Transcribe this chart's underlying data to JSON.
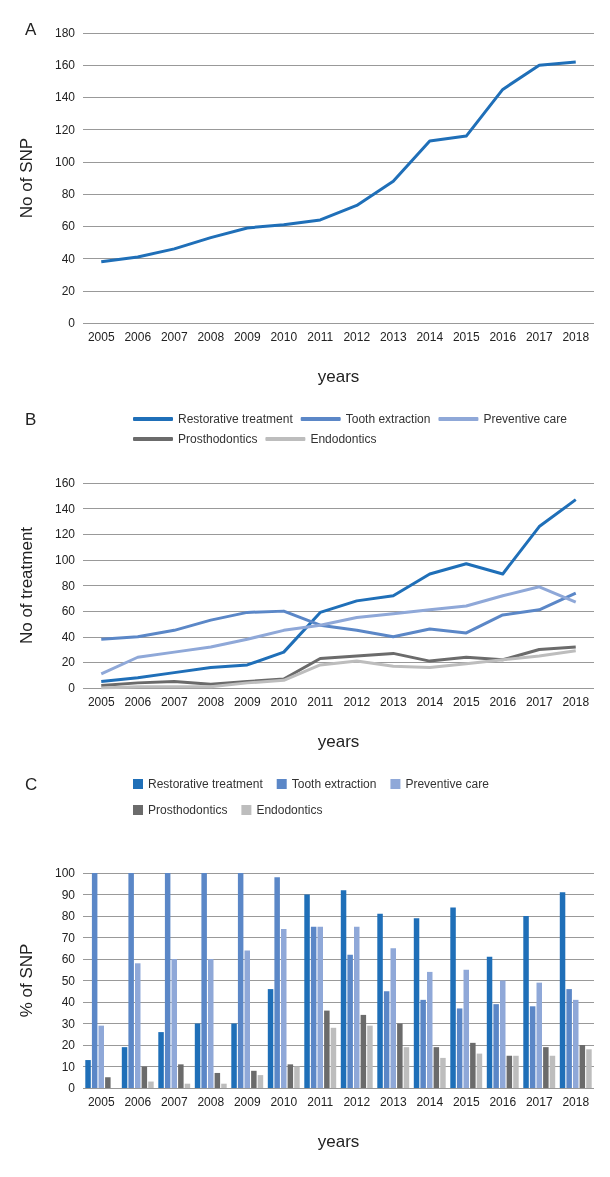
{
  "chart_data": [
    {
      "type": "line",
      "title": "A",
      "xlabel": "years",
      "ylabel": "No of SNP",
      "categories": [
        "2005",
        "2006",
        "2007",
        "2008",
        "2009",
        "2010",
        "2011",
        "2012",
        "2013",
        "2014",
        "2015",
        "2016",
        "2017",
        "2018"
      ],
      "series": [
        {
          "color": "#1f6fb8",
          "values": [
            38,
            41,
            46,
            53,
            59,
            61,
            64,
            73,
            88,
            113,
            116,
            145,
            160,
            162
          ]
        }
      ],
      "ylim": [
        0,
        180
      ],
      "yticks": [
        0,
        20,
        40,
        60,
        80,
        100,
        120,
        140,
        160,
        180
      ],
      "grid": "y",
      "legend": false,
      "marker": "none"
    },
    {
      "type": "line",
      "title": "B",
      "xlabel": "years",
      "ylabel": "No of treatment",
      "categories": [
        "2005",
        "2006",
        "2007",
        "2008",
        "2009",
        "2010",
        "2011",
        "2012",
        "2013",
        "2014",
        "2015",
        "2016",
        "2017",
        "2018"
      ],
      "series": [
        {
          "name": "Restorative treatment",
          "color": "#1f6fb8",
          "values": [
            5,
            8,
            12,
            16,
            18,
            28,
            59,
            68,
            72,
            89,
            97,
            89,
            126,
            147
          ]
        },
        {
          "name": "Tooth extraction",
          "color": "#5b87c7",
          "values": [
            38,
            40,
            45,
            53,
            59,
            60,
            49,
            45,
            40,
            46,
            43,
            57,
            61,
            74
          ]
        },
        {
          "name": "Preventive care",
          "color": "#8fa8d8",
          "values": [
            11,
            24,
            28,
            32,
            38,
            45,
            49,
            55,
            58,
            61,
            64,
            72,
            79,
            67
          ]
        },
        {
          "name": "Prosthodontics",
          "color": "#6b6b6b",
          "values": [
            2,
            4,
            5,
            3,
            5,
            7,
            23,
            25,
            27,
            21,
            24,
            22,
            30,
            32
          ]
        },
        {
          "name": "Endodontics",
          "color": "#bdbdbd",
          "values": [
            0,
            1,
            1,
            1,
            4,
            6,
            18,
            21,
            17,
            16,
            19,
            22,
            25,
            29
          ]
        }
      ],
      "ylim": [
        0,
        160
      ],
      "yticks": [
        0,
        20,
        40,
        60,
        80,
        100,
        120,
        140,
        160
      ],
      "grid": "y",
      "legend": "top",
      "marker": "none"
    },
    {
      "type": "bar",
      "title": "C",
      "xlabel": "years",
      "ylabel": "% of SNP",
      "categories": [
        "2005",
        "2006",
        "2007",
        "2008",
        "2009",
        "2010",
        "2011",
        "2012",
        "2013",
        "2014",
        "2015",
        "2016",
        "2017",
        "2018"
      ],
      "series": [
        {
          "name": "Restorative treatment",
          "color": "#1f6fb8",
          "values": [
            13,
            19,
            26,
            30,
            30,
            46,
            90,
            92,
            81,
            79,
            84,
            61,
            80,
            91
          ]
        },
        {
          "name": "Tooth extraction",
          "color": "#5b87c7",
          "values": [
            100,
            100,
            100,
            100,
            100,
            98,
            75,
            62,
            45,
            41,
            37,
            39,
            38,
            46
          ]
        },
        {
          "name": "Preventive care",
          "color": "#8fa8d8",
          "values": [
            29,
            58,
            60,
            60,
            64,
            74,
            75,
            75,
            65,
            54,
            55,
            50,
            49,
            41
          ]
        },
        {
          "name": "Prosthodontics",
          "color": "#6b6b6b",
          "values": [
            5,
            10,
            11,
            7,
            8,
            11,
            36,
            34,
            30,
            19,
            21,
            15,
            19,
            20
          ]
        },
        {
          "name": "Endodontics",
          "color": "#bdbdbd",
          "values": [
            0,
            3,
            2,
            2,
            6,
            10,
            28,
            29,
            19,
            14,
            16,
            15,
            15,
            18
          ]
        }
      ],
      "ylim": [
        0,
        100
      ],
      "yticks": [
        0,
        10,
        20,
        30,
        40,
        50,
        60,
        70,
        80,
        90,
        100
      ],
      "grid": "y",
      "legend": "top"
    }
  ]
}
